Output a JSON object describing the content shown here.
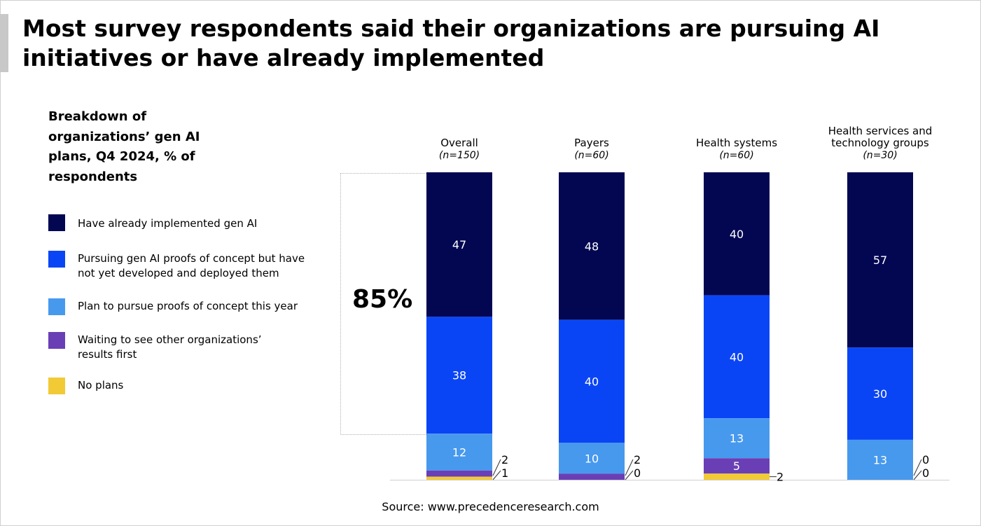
{
  "title": "Most survey respondents said their organizations are pursuing AI initiatives or have already implemented",
  "subtitle": "Breakdown of organizations’ gen AI plans, Q4 2024, % of respondents",
  "highlight": "85%",
  "source": "Source: www.precedenceresearch.com",
  "colors": {
    "implemented": "#030752",
    "pursuing": "#0a45f5",
    "plan": "#4799ee",
    "waiting": "#6a3fb5",
    "no_plans": "#f2ca35"
  },
  "legend": [
    {
      "label": "Have already implemented gen AI",
      "color": "#030752"
    },
    {
      "label": "Pursuing gen AI proofs of concept but have not yet developed and deployed them",
      "color": "#0a45f5"
    },
    {
      "label": "Plan to pursue proofs of concept this year",
      "color": "#4799ee"
    },
    {
      "label": "Waiting to see other organizations’ results first",
      "color": "#6a3fb5"
    },
    {
      "label": "No plans",
      "color": "#f2ca35"
    }
  ],
  "chart_data": {
    "type": "bar",
    "stacked": true,
    "title": "Breakdown of organizations’ gen AI plans, Q4 2024, % of respondents",
    "categories": [
      "Overall",
      "Payers",
      "Health systems",
      "Health services and technology groups"
    ],
    "category_n": [
      "(n=150)",
      "(n=60)",
      "(n=60)",
      "(n=30)"
    ],
    "series": [
      {
        "name": "Have already implemented gen AI",
        "values": [
          47,
          48,
          40,
          57
        ]
      },
      {
        "name": "Pursuing gen AI proofs of concept but have not yet developed and deployed them",
        "values": [
          38,
          40,
          40,
          30
        ]
      },
      {
        "name": "Plan to pursue proofs of concept this year",
        "values": [
          12,
          10,
          13,
          13
        ]
      },
      {
        "name": "Waiting to see other organizations’ results first",
        "values": [
          2,
          2,
          5,
          0
        ]
      },
      {
        "name": "No plans",
        "values": [
          1,
          0,
          2,
          0
        ]
      }
    ],
    "ylim": [
      0,
      100
    ],
    "annotation": "85%"
  }
}
